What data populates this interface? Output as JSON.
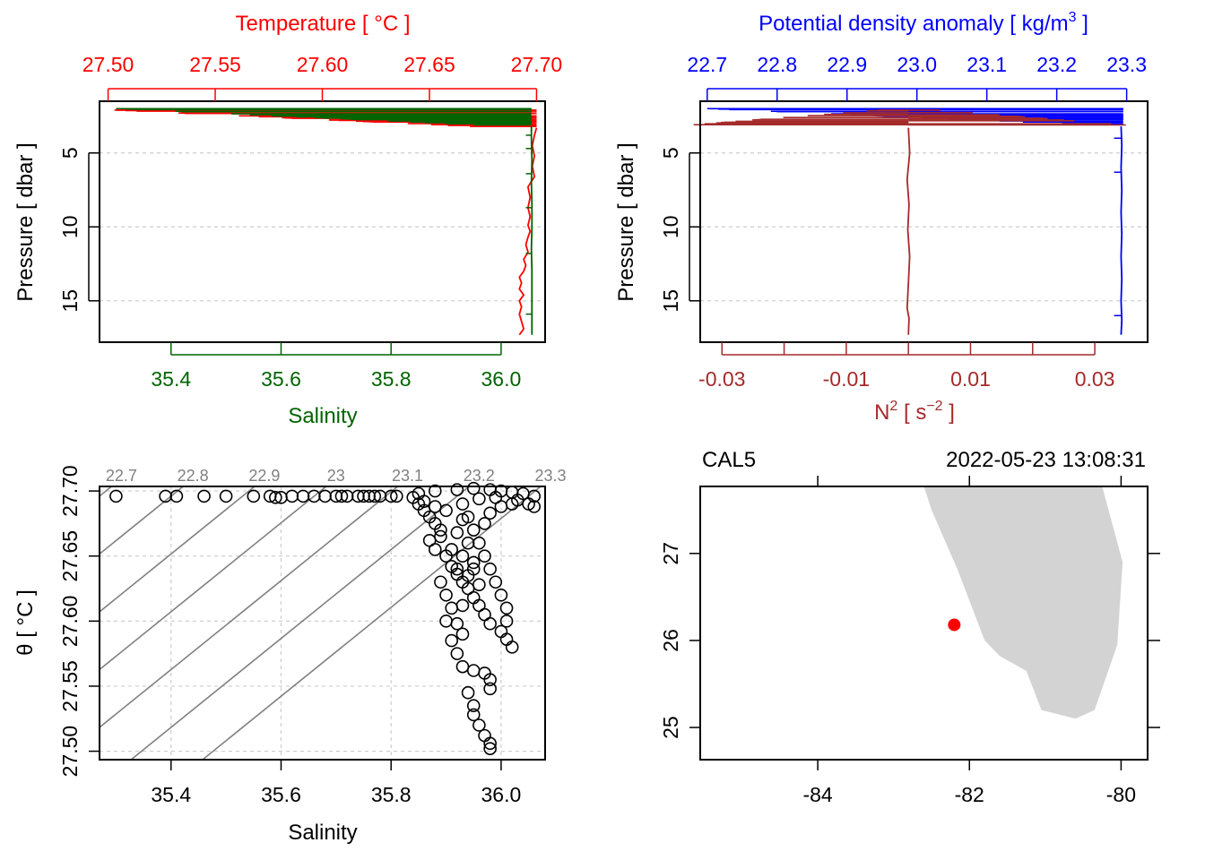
{
  "chart_data": [
    {
      "type": "line",
      "panel": "top-left",
      "title": "",
      "top_axis": {
        "label": "Temperature [ °C ]",
        "color": "#ff0000",
        "ticks": [
          "27.50",
          "27.55",
          "27.60",
          "27.65",
          "27.70"
        ],
        "range": [
          27.496,
          27.704
        ]
      },
      "bottom_axis": {
        "label": "Salinity",
        "color": "#006400",
        "ticks": [
          "35.4",
          "35.6",
          "35.8",
          "36.0"
        ],
        "range": [
          35.27,
          36.08
        ]
      },
      "left_axis": {
        "label": "Pressure [ dbar ]",
        "ticks": [
          "5",
          "10",
          "15"
        ],
        "range": [
          1.5,
          17.8
        ],
        "reversed": true
      },
      "series": [
        {
          "name": "Temperature",
          "color": "#ff0000",
          "x": [
            27.7,
            27.699,
            27.698,
            27.699,
            27.698,
            27.699,
            27.696,
            27.697,
            27.696,
            27.697,
            27.696,
            27.697,
            27.696,
            27.695,
            27.696,
            27.694,
            27.695,
            27.694,
            27.692,
            27.693,
            27.692,
            27.694,
            27.692,
            27.693,
            27.692,
            27.693,
            27.694,
            27.692
          ],
          "y": [
            3.3,
            3.8,
            4.5,
            5.2,
            5.9,
            6.6,
            7.3,
            8.0,
            8.7,
            9.3,
            9.9,
            10.3,
            10.7,
            11.2,
            11.7,
            12.2,
            12.6,
            13.0,
            13.4,
            13.8,
            14.2,
            14.6,
            15.0,
            15.4,
            15.9,
            16.4,
            16.9,
            17.3
          ]
        },
        {
          "name": "Salinity",
          "color": "#006400",
          "x": [
            36.055,
            36.055,
            36.056,
            36.055,
            36.056,
            36.056,
            36.055,
            36.056,
            36.056,
            36.056,
            36.056
          ],
          "y": [
            3.2,
            4.0,
            5.5,
            7.0,
            8.5,
            10.0,
            11.5,
            13.0,
            14.5,
            16.0,
            17.3
          ]
        }
      ],
      "surface_spikes": {
        "temperature_min": 27.503,
        "salinity_min": 35.3
      }
    },
    {
      "type": "line",
      "panel": "top-right",
      "top_axis": {
        "label": "Potential density anomaly [ kg/m3 ]",
        "color": "#0000ff",
        "ticks": [
          "22.7",
          "22.8",
          "22.9",
          "23.0",
          "23.1",
          "23.2",
          "23.3"
        ],
        "range": [
          22.69,
          23.33
        ]
      },
      "bottom_axis": {
        "label": "N2 [ s−2 ]",
        "color": "#a52a2a",
        "ticks": [
          "-0.03",
          "-0.01",
          "0.01",
          "0.03"
        ],
        "range": [
          -0.0335,
          0.0385
        ]
      },
      "left_axis": {
        "label": "Pressure [ dbar ]",
        "ticks": [
          "5",
          "10",
          "15"
        ],
        "range": [
          1.5,
          17.8
        ],
        "reversed": true
      },
      "series": [
        {
          "name": "Potential density anomaly",
          "color": "#0000ff",
          "x": [
            23.292,
            23.293,
            23.292,
            23.293,
            23.292,
            23.293,
            23.292,
            23.293,
            23.292,
            23.293,
            23.292
          ],
          "y": [
            3.2,
            4.5,
            6.0,
            7.5,
            9.0,
            10.5,
            12.0,
            13.5,
            15.0,
            16.3,
            17.3
          ]
        },
        {
          "name": "N2",
          "color": "#a52a2a",
          "x": [
            0.0,
            0.0002,
            -0.0002,
            0.0001,
            -0.0001,
            0.0002,
            0.0,
            -0.0002,
            0.0001,
            0.0
          ],
          "y": [
            3.3,
            5.0,
            6.8,
            8.5,
            10.2,
            12.0,
            13.8,
            15.5,
            16.2,
            17.3
          ]
        }
      ]
    },
    {
      "type": "scatter",
      "panel": "bottom-left",
      "xlabel": "Salinity",
      "ylabel": "θ [ °C ]",
      "x_ticks": [
        "35.4",
        "35.6",
        "35.8",
        "36.0"
      ],
      "y_ticks": [
        "27.50",
        "27.55",
        "27.60",
        "27.65",
        "27.70"
      ],
      "xlim": [
        35.27,
        36.08
      ],
      "ylim": [
        27.4935,
        27.7035
      ],
      "isopycnal_labels": [
        "22.7",
        "22.8",
        "22.9",
        "23",
        "23.1",
        "23.2",
        "23.3"
      ],
      "isopycnals": [
        22.7,
        22.8,
        22.9,
        23.0,
        23.1,
        23.2,
        23.3
      ],
      "isopycnal_slope_dS_dT": 0.2965,
      "isopycnal_anchor_S_at_top": [
        35.3,
        35.43,
        35.56,
        35.69,
        35.82,
        35.95,
        36.08
      ],
      "points": [
        [
          35.3,
          27.696
        ],
        [
          35.39,
          27.696
        ],
        [
          35.41,
          27.696
        ],
        [
          35.46,
          27.696
        ],
        [
          35.5,
          27.696
        ],
        [
          35.55,
          27.696
        ],
        [
          35.58,
          27.696
        ],
        [
          35.59,
          27.695
        ],
        [
          35.6,
          27.695
        ],
        [
          35.62,
          27.696
        ],
        [
          35.64,
          27.696
        ],
        [
          35.66,
          27.696
        ],
        [
          35.68,
          27.696
        ],
        [
          35.7,
          27.696
        ],
        [
          35.71,
          27.696
        ],
        [
          35.72,
          27.696
        ],
        [
          35.74,
          27.696
        ],
        [
          35.75,
          27.696
        ],
        [
          35.76,
          27.696
        ],
        [
          35.77,
          27.696
        ],
        [
          35.78,
          27.696
        ],
        [
          35.8,
          27.696
        ],
        [
          35.81,
          27.696
        ],
        [
          35.84,
          27.695
        ],
        [
          35.85,
          27.69
        ],
        [
          35.86,
          27.685
        ],
        [
          35.87,
          27.68
        ],
        [
          35.88,
          27.675
        ],
        [
          35.89,
          27.67
        ],
        [
          35.87,
          27.662
        ],
        [
          35.88,
          27.655
        ],
        [
          35.9,
          27.65
        ],
        [
          35.91,
          27.642
        ],
        [
          35.92,
          27.636
        ],
        [
          35.93,
          27.63
        ],
        [
          35.94,
          27.625
        ],
        [
          35.95,
          27.618
        ],
        [
          35.96,
          27.612
        ],
        [
          35.97,
          27.605
        ],
        [
          35.98,
          27.598
        ],
        [
          36.0,
          27.592
        ],
        [
          36.01,
          27.586
        ],
        [
          36.02,
          27.58
        ],
        [
          35.89,
          27.63
        ],
        [
          35.9,
          27.62
        ],
        [
          35.91,
          27.61
        ],
        [
          35.9,
          27.6
        ],
        [
          35.92,
          27.598
        ],
        [
          35.93,
          27.59
        ],
        [
          35.91,
          27.585
        ],
        [
          35.92,
          27.575
        ],
        [
          35.93,
          27.565
        ],
        [
          35.95,
          27.562
        ],
        [
          35.97,
          27.56
        ],
        [
          35.98,
          27.555
        ],
        [
          35.98,
          27.548
        ],
        [
          35.94,
          27.545
        ],
        [
          35.95,
          27.535
        ],
        [
          35.95,
          27.528
        ],
        [
          35.96,
          27.52
        ],
        [
          35.97,
          27.512
        ],
        [
          35.98,
          27.506
        ],
        [
          35.98,
          27.502
        ],
        [
          35.88,
          27.7
        ],
        [
          35.92,
          27.701
        ],
        [
          35.95,
          27.702
        ],
        [
          35.98,
          27.701
        ],
        [
          36.0,
          27.7
        ],
        [
          36.02,
          27.699
        ],
        [
          36.04,
          27.698
        ],
        [
          36.06,
          27.696
        ],
        [
          36.05,
          27.69
        ],
        [
          36.06,
          27.688
        ],
        [
          36.03,
          27.693
        ],
        [
          35.99,
          27.695
        ],
        [
          35.96,
          27.694
        ],
        [
          35.93,
          27.69
        ],
        [
          35.94,
          27.68
        ],
        [
          35.95,
          27.67
        ],
        [
          35.96,
          27.66
        ],
        [
          35.97,
          27.65
        ],
        [
          35.98,
          27.64
        ],
        [
          35.99,
          27.63
        ],
        [
          36.0,
          27.62
        ],
        [
          36.01,
          27.61
        ],
        [
          36.01,
          27.6
        ],
        [
          35.85,
          27.698
        ],
        [
          35.86,
          27.692
        ],
        [
          35.88,
          27.688
        ],
        [
          35.9,
          27.685
        ],
        [
          35.93,
          27.678
        ],
        [
          35.92,
          27.668
        ],
        [
          35.94,
          27.66
        ],
        [
          35.93,
          27.65
        ],
        [
          35.95,
          27.645
        ],
        [
          35.92,
          27.64
        ],
        [
          35.94,
          27.635
        ],
        [
          35.96,
          27.628
        ],
        [
          35.95,
          27.64
        ],
        [
          35.97,
          27.675
        ],
        [
          35.98,
          27.683
        ],
        [
          36.0,
          27.688
        ],
        [
          36.02,
          27.69
        ],
        [
          35.89,
          27.665
        ],
        [
          35.91,
          27.655
        ],
        [
          35.93,
          27.612
        ]
      ]
    },
    {
      "type": "map",
      "panel": "bottom-right",
      "station": "CAL5",
      "datetime": "2022-05-23 13:08:31",
      "x_ticks": [
        "-84",
        "-82",
        "-80"
      ],
      "y_ticks": [
        "25",
        "26",
        "27"
      ],
      "lon_range": [
        -85.55,
        -79.65
      ],
      "lat_range": [
        24.63,
        27.77
      ],
      "land_polygon": [
        [
          -82.6,
          27.77
        ],
        [
          -82.5,
          27.5
        ],
        [
          -82.15,
          26.8
        ],
        [
          -81.8,
          26.0
        ],
        [
          -81.6,
          25.82
        ],
        [
          -81.25,
          25.65
        ],
        [
          -81.05,
          25.2
        ],
        [
          -80.6,
          25.1
        ],
        [
          -80.35,
          25.2
        ],
        [
          -80.05,
          25.95
        ],
        [
          -79.98,
          26.9
        ],
        [
          -80.25,
          27.77
        ]
      ],
      "station_position": {
        "lon": -82.2,
        "lat": 26.18
      },
      "land_color": "#d3d3d3",
      "station_color": "#ff0000"
    }
  ]
}
